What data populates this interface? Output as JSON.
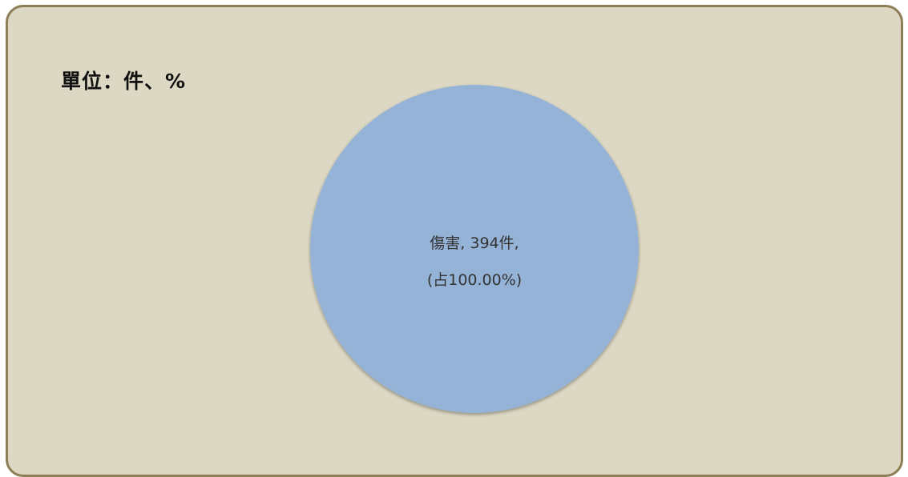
{
  "unit_label": "單位：件、%",
  "colors": {
    "background": "#ddd8c3",
    "border": "#8c7f55",
    "slice": "#95b3d7"
  },
  "chart_data": {
    "type": "pie",
    "title": "",
    "slices": [
      {
        "name": "傷害",
        "value": 394,
        "percent": 100.0,
        "label_line1": "傷害, 394件,",
        "label_line2": "(占100.00%)"
      }
    ]
  }
}
